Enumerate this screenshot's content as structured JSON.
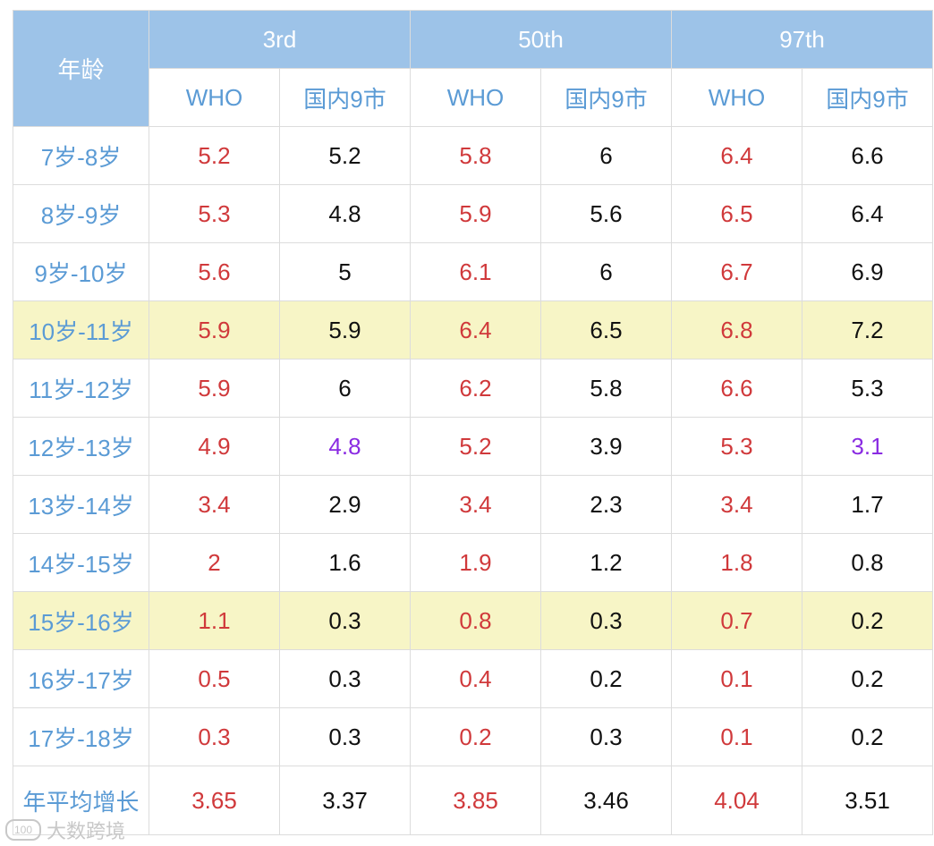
{
  "chart_data": {
    "type": "table",
    "header": {
      "age_label": "年龄",
      "groups": [
        "3rd",
        "50th",
        "97th"
      ],
      "sub_labels": [
        "WHO",
        "国内9市",
        "WHO",
        "国内9市",
        "WHO",
        "国内9市"
      ]
    },
    "rows": [
      {
        "age": "7岁-8岁",
        "values": [
          "5.2",
          "5.2",
          "5.8",
          "6",
          "6.4",
          "6.6"
        ],
        "highlight": false
      },
      {
        "age": "8岁-9岁",
        "values": [
          "5.3",
          "4.8",
          "5.9",
          "5.6",
          "6.5",
          "6.4"
        ],
        "highlight": false
      },
      {
        "age": "9岁-10岁",
        "values": [
          "5.6",
          "5",
          "6.1",
          "6",
          "6.7",
          "6.9"
        ],
        "highlight": false
      },
      {
        "age": "10岁-11岁",
        "values": [
          "5.9",
          "5.9",
          "6.4",
          "6.5",
          "6.8",
          "7.2"
        ],
        "highlight": true
      },
      {
        "age": "11岁-12岁",
        "values": [
          "5.9",
          "6",
          "6.2",
          "5.8",
          "6.6",
          "5.3"
        ],
        "highlight": false
      },
      {
        "age": "12岁-13岁",
        "values": [
          "4.9",
          "4.8",
          "5.2",
          "3.9",
          "5.3",
          "3.1"
        ],
        "highlight": false,
        "purple_cols": [
          1,
          5
        ]
      },
      {
        "age": "13岁-14岁",
        "values": [
          "3.4",
          "2.9",
          "3.4",
          "2.3",
          "3.4",
          "1.7"
        ],
        "highlight": false
      },
      {
        "age": "14岁-15岁",
        "values": [
          "2",
          "1.6",
          "1.9",
          "1.2",
          "1.8",
          "0.8"
        ],
        "highlight": false
      },
      {
        "age": "15岁-16岁",
        "values": [
          "1.1",
          "0.3",
          "0.8",
          "0.3",
          "0.7",
          "0.2"
        ],
        "highlight": true
      },
      {
        "age": "16岁-17岁",
        "values": [
          "0.5",
          "0.3",
          "0.4",
          "0.2",
          "0.1",
          "0.2"
        ],
        "highlight": false
      },
      {
        "age": "17岁-18岁",
        "values": [
          "0.3",
          "0.3",
          "0.2",
          "0.3",
          "0.1",
          "0.2"
        ],
        "highlight": false
      },
      {
        "age": "年平均增长",
        "values": [
          "3.65",
          "3.37",
          "3.85",
          "3.46",
          "4.04",
          "3.51"
        ],
        "highlight": false,
        "avg": true
      }
    ],
    "colors": {
      "header_bg": "#9dc3e8",
      "highlight_bg": "#f7f5c6",
      "age_text": "#5b9bd5",
      "who_text": "#d0393b",
      "domestic_text": "#111111",
      "emphasis_text": "#8a2be2"
    }
  },
  "watermark": {
    "text": "大数跨境",
    "logo": "100"
  }
}
